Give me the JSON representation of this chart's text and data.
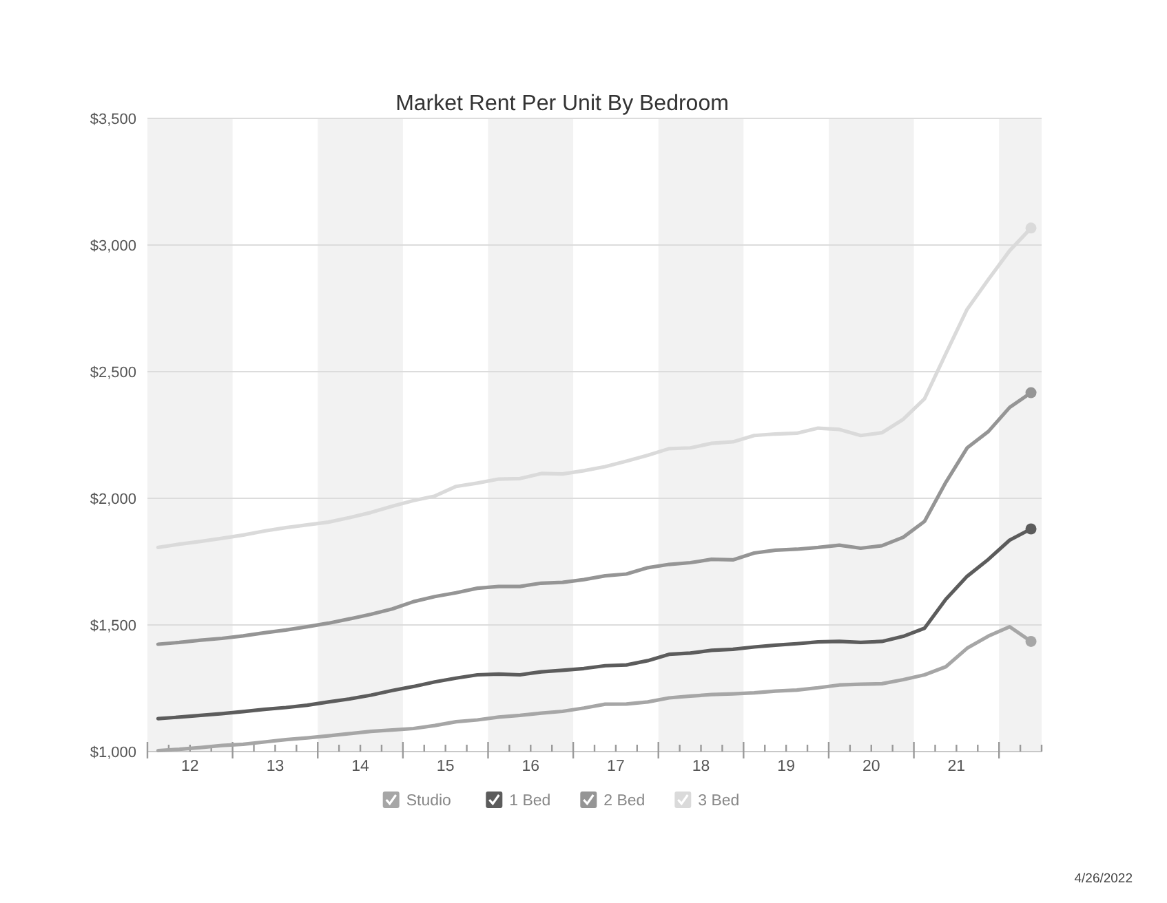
{
  "chart_data": {
    "type": "line",
    "title": "Market Rent Per Unit By Bedroom",
    "x": [
      12.125,
      12.375,
      12.625,
      12.875,
      13.125,
      13.375,
      13.625,
      13.875,
      14.125,
      14.375,
      14.625,
      14.875,
      15.125,
      15.375,
      15.625,
      15.875,
      16.125,
      16.375,
      16.625,
      16.875,
      17.125,
      17.375,
      17.625,
      17.875,
      18.125,
      18.375,
      18.625,
      18.875,
      19.125,
      19.375,
      19.625,
      19.875,
      20.125,
      20.375,
      20.625,
      20.875,
      21.125,
      21.375,
      21.625,
      21.875,
      22.125,
      22.375
    ],
    "series": [
      {
        "name": "Studio",
        "color": "#a6a6a6",
        "values": [
          1004,
          1009,
          1016,
          1024,
          1029,
          1038,
          1047,
          1054,
          1062,
          1071,
          1080,
          1085,
          1091,
          1103,
          1118,
          1125,
          1136,
          1143,
          1152,
          1159,
          1172,
          1187,
          1188,
          1196,
          1212,
          1219,
          1225,
          1228,
          1232,
          1239,
          1243,
          1252,
          1263,
          1266,
          1268,
          1284,
          1303,
          1335,
          1408,
          1456,
          1493,
          1435
        ]
      },
      {
        "name": "1 Bed",
        "color": "#5c5c5c",
        "values": [
          1130,
          1136,
          1143,
          1150,
          1158,
          1167,
          1174,
          1183,
          1196,
          1208,
          1223,
          1241,
          1257,
          1275,
          1290,
          1303,
          1306,
          1303,
          1315,
          1321,
          1328,
          1339,
          1342,
          1359,
          1384,
          1389,
          1400,
          1404,
          1413,
          1420,
          1426,
          1433,
          1435,
          1431,
          1435,
          1455,
          1487,
          1601,
          1692,
          1759,
          1835,
          1879
        ]
      },
      {
        "name": "2 Bed",
        "color": "#959595",
        "values": [
          1424,
          1431,
          1440,
          1447,
          1457,
          1469,
          1480,
          1493,
          1507,
          1524,
          1542,
          1563,
          1592,
          1612,
          1627,
          1645,
          1652,
          1652,
          1665,
          1668,
          1679,
          1694,
          1701,
          1726,
          1739,
          1746,
          1759,
          1757,
          1784,
          1795,
          1799,
          1806,
          1815,
          1803,
          1813,
          1846,
          1909,
          2063,
          2199,
          2264,
          2359,
          2417
        ]
      },
      {
        "name": "3 Bed",
        "color": "#dadada",
        "values": [
          1806,
          1819,
          1830,
          1842,
          1855,
          1871,
          1884,
          1895,
          1906,
          1924,
          1944,
          1969,
          1991,
          2009,
          2047,
          2060,
          2076,
          2078,
          2098,
          2096,
          2109,
          2125,
          2147,
          2170,
          2196,
          2199,
          2217,
          2223,
          2248,
          2254,
          2257,
          2277,
          2272,
          2248,
          2259,
          2312,
          2393,
          2571,
          2746,
          2864,
          2978,
          3067
        ]
      }
    ],
    "xlim": [
      12,
      22.5
    ],
    "xticks": [
      {
        "value": 12,
        "label": null
      },
      {
        "value": 12.25,
        "label": null
      },
      {
        "value": 12.5,
        "label": "12"
      },
      {
        "value": 12.75,
        "label": null
      },
      {
        "value": 13,
        "label": null
      },
      {
        "value": 13.25,
        "label": null
      },
      {
        "value": 13.5,
        "label": "13"
      },
      {
        "value": 13.75,
        "label": null
      },
      {
        "value": 14,
        "label": null
      },
      {
        "value": 14.25,
        "label": null
      },
      {
        "value": 14.5,
        "label": "14"
      },
      {
        "value": 14.75,
        "label": null
      },
      {
        "value": 15,
        "label": null
      },
      {
        "value": 15.25,
        "label": null
      },
      {
        "value": 15.5,
        "label": "15"
      },
      {
        "value": 15.75,
        "label": null
      },
      {
        "value": 16,
        "label": null
      },
      {
        "value": 16.25,
        "label": null
      },
      {
        "value": 16.5,
        "label": "16"
      },
      {
        "value": 16.75,
        "label": null
      },
      {
        "value": 17,
        "label": null
      },
      {
        "value": 17.25,
        "label": null
      },
      {
        "value": 17.5,
        "label": "17"
      },
      {
        "value": 17.75,
        "label": null
      },
      {
        "value": 18,
        "label": null
      },
      {
        "value": 18.25,
        "label": null
      },
      {
        "value": 18.5,
        "label": "18"
      },
      {
        "value": 18.75,
        "label": null
      },
      {
        "value": 19,
        "label": null
      },
      {
        "value": 19.25,
        "label": null
      },
      {
        "value": 19.5,
        "label": "19"
      },
      {
        "value": 19.75,
        "label": null
      },
      {
        "value": 20,
        "label": null
      },
      {
        "value": 20.25,
        "label": null
      },
      {
        "value": 20.5,
        "label": "20"
      },
      {
        "value": 20.75,
        "label": null
      },
      {
        "value": 21,
        "label": null
      },
      {
        "value": 21.25,
        "label": null
      },
      {
        "value": 21.5,
        "label": "21"
      },
      {
        "value": 21.75,
        "label": null
      },
      {
        "value": 22,
        "label": null
      },
      {
        "value": 22.25,
        "label": null
      },
      {
        "value": 22.5,
        "label": null
      }
    ],
    "ylim": [
      1000,
      3500
    ],
    "yticks": [
      {
        "value": 1000,
        "label": "$1,000"
      },
      {
        "value": 1500,
        "label": "$1,500"
      },
      {
        "value": 2000,
        "label": "$2,000"
      },
      {
        "value": 2500,
        "label": "$2,500"
      },
      {
        "value": 3000,
        "label": "$3,000"
      },
      {
        "value": 3500,
        "label": "$3,500"
      }
    ],
    "bands": [
      {
        "axis": "x",
        "from": 12,
        "to": 13,
        "color": "#f2f2f2"
      },
      {
        "axis": "x",
        "from": 14,
        "to": 15,
        "color": "#f2f2f2"
      },
      {
        "axis": "x",
        "from": 16,
        "to": 17,
        "color": "#f2f2f2"
      },
      {
        "axis": "x",
        "from": 18,
        "to": 19,
        "color": "#f2f2f2"
      },
      {
        "axis": "x",
        "from": 20,
        "to": 21,
        "color": "#f2f2f2"
      },
      {
        "axis": "x",
        "from": 22,
        "to": 22.5,
        "color": "#f2f2f2"
      }
    ],
    "grid": "y",
    "legend": "bottom",
    "line_style": "solid",
    "annotations": [
      "4/26/2022"
    ]
  }
}
